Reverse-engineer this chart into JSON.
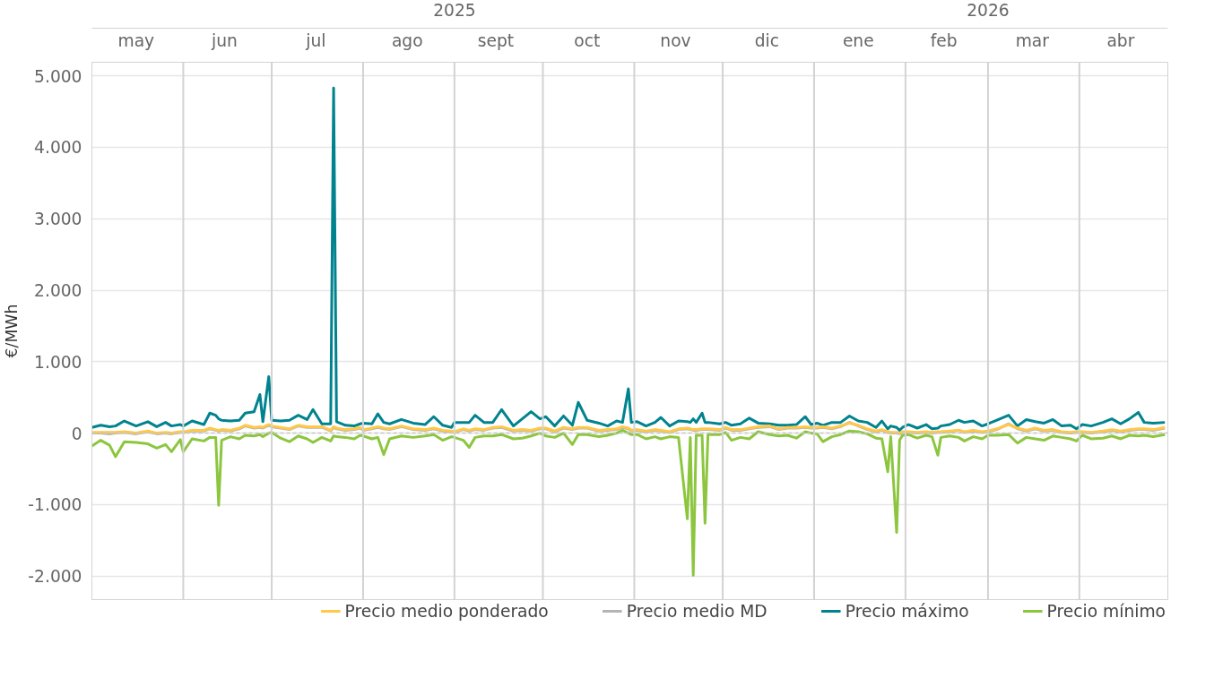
{
  "chart_data": {
    "type": "line",
    "ylabel": "€/MWh",
    "x": [
      "2025-05-01",
      "2025-05-04",
      "2025-05-07",
      "2025-05-09",
      "2025-05-12",
      "2025-05-16",
      "2025-05-20",
      "2025-05-23",
      "2025-05-26",
      "2025-05-28",
      "2025-05-31",
      "2025-06-01",
      "2025-06-04",
      "2025-06-08",
      "2025-06-10",
      "2025-06-12",
      "2025-06-13",
      "2025-06-14",
      "2025-06-17",
      "2025-06-20",
      "2025-06-22",
      "2025-06-25",
      "2025-06-27",
      "2025-06-28",
      "2025-06-30",
      "2025-07-01",
      "2025-07-04",
      "2025-07-07",
      "2025-07-10",
      "2025-07-13",
      "2025-07-15",
      "2025-07-18",
      "2025-07-21",
      "2025-07-22",
      "2025-07-23",
      "2025-07-26",
      "2025-07-29",
      "2025-07-31",
      "2025-08-01",
      "2025-08-04",
      "2025-08-06",
      "2025-08-08",
      "2025-08-10",
      "2025-08-14",
      "2025-08-18",
      "2025-08-22",
      "2025-08-25",
      "2025-08-28",
      "2025-08-31",
      "2025-09-01",
      "2025-09-04",
      "2025-09-06",
      "2025-09-08",
      "2025-09-11",
      "2025-09-14",
      "2025-09-17",
      "2025-09-21",
      "2025-09-24",
      "2025-09-27",
      "2025-09-30",
      "2025-10-02",
      "2025-10-05",
      "2025-10-08",
      "2025-10-11",
      "2025-10-13",
      "2025-10-16",
      "2025-10-20",
      "2025-10-23",
      "2025-10-26",
      "2025-10-28",
      "2025-10-30",
      "2025-10-31",
      "2025-11-02",
      "2025-11-05",
      "2025-11-08",
      "2025-11-10",
      "2025-11-13",
      "2025-11-16",
      "2025-11-19",
      "2025-11-20",
      "2025-11-21",
      "2025-11-22",
      "2025-11-24",
      "2025-11-25",
      "2025-11-26",
      "2025-11-30",
      "2025-12-02",
      "2025-12-04",
      "2025-12-07",
      "2025-12-10",
      "2025-12-13",
      "2025-12-17",
      "2025-12-20",
      "2025-12-23",
      "2025-12-26",
      "2025-12-29",
      "2025-12-31",
      "2026-01-02",
      "2026-01-04",
      "2026-01-07",
      "2026-01-10",
      "2026-01-13",
      "2026-01-16",
      "2026-01-19",
      "2026-01-22",
      "2026-01-24",
      "2026-01-26",
      "2026-01-27",
      "2026-01-29",
      "2026-01-30",
      "2026-01-31",
      "2026-02-02",
      "2026-02-05",
      "2026-02-08",
      "2026-02-10",
      "2026-02-12",
      "2026-02-13",
      "2026-02-16",
      "2026-02-19",
      "2026-02-21",
      "2026-02-24",
      "2026-02-27",
      "2026-03-01",
      "2026-03-04",
      "2026-03-08",
      "2026-03-11",
      "2026-03-14",
      "2026-03-17",
      "2026-03-20",
      "2026-03-23",
      "2026-03-26",
      "2026-03-29",
      "2026-03-31",
      "2026-04-02",
      "2026-04-05",
      "2026-04-09",
      "2026-04-12",
      "2026-04-15",
      "2026-04-18",
      "2026-04-21",
      "2026-04-23",
      "2026-04-26",
      "2026-04-30"
    ],
    "series": [
      {
        "name": "Precio medio ponderado",
        "color": "#ffc846",
        "values": [
          10,
          10,
          10,
          10,
          20,
          0,
          30,
          0,
          10,
          0,
          20,
          20,
          40,
          40,
          70,
          50,
          40,
          50,
          40,
          70,
          110,
          80,
          90,
          80,
          120,
          100,
          80,
          60,
          110,
          90,
          90,
          90,
          40,
          90,
          70,
          50,
          60,
          80,
          50,
          70,
          90,
          70,
          60,
          100,
          60,
          50,
          70,
          40,
          30,
          20,
          60,
          40,
          60,
          50,
          80,
          90,
          40,
          50,
          40,
          70,
          70,
          30,
          80,
          60,
          80,
          80,
          40,
          50,
          60,
          90,
          70,
          40,
          50,
          30,
          50,
          40,
          20,
          60,
          70,
          60,
          50,
          50,
          60,
          60,
          60,
          50,
          80,
          50,
          50,
          70,
          90,
          100,
          60,
          80,
          80,
          90,
          80,
          80,
          90,
          70,
          100,
          140,
          110,
          60,
          30,
          50,
          20,
          10,
          10,
          0,
          20,
          20,
          10,
          20,
          10,
          20,
          20,
          30,
          40,
          20,
          40,
          20,
          30,
          60,
          120,
          70,
          40,
          70,
          40,
          50,
          20,
          10,
          20,
          20,
          10,
          30,
          50,
          30,
          50,
          60,
          60,
          50,
          80
        ]
      },
      {
        "name": "Precio medio MD",
        "color": "#b4b4b4",
        "values": [
          0,
          0,
          -10,
          0,
          10,
          -10,
          20,
          -10,
          0,
          -10,
          10,
          10,
          30,
          30,
          60,
          40,
          30,
          40,
          30,
          60,
          100,
          70,
          80,
          70,
          110,
          90,
          70,
          50,
          100,
          80,
          80,
          80,
          30,
          80,
          60,
          40,
          50,
          70,
          40,
          60,
          80,
          60,
          50,
          90,
          50,
          40,
          60,
          30,
          20,
          10,
          50,
          30,
          50,
          40,
          70,
          80,
          30,
          40,
          30,
          60,
          60,
          20,
          70,
          50,
          70,
          70,
          30,
          40,
          50,
          80,
          60,
          30,
          40,
          20,
          40,
          30,
          10,
          50,
          60,
          50,
          40,
          40,
          50,
          50,
          50,
          40,
          70,
          40,
          40,
          60,
          80,
          90,
          50,
          70,
          70,
          80,
          70,
          70,
          80,
          60,
          90,
          150,
          100,
          50,
          20,
          40,
          10,
          0,
          0,
          -10,
          10,
          10,
          0,
          10,
          0,
          10,
          10,
          20,
          40,
          10,
          30,
          10,
          20,
          50,
          130,
          60,
          30,
          60,
          30,
          40,
          10,
          0,
          10,
          10,
          0,
          20,
          40,
          20,
          40,
          50,
          50,
          40,
          70
        ]
      },
      {
        "name": "Precio máximo",
        "color": "#00838f",
        "values": [
          80,
          110,
          90,
          100,
          170,
          100,
          160,
          90,
          150,
          100,
          120,
          100,
          170,
          120,
          280,
          250,
          200,
          180,
          170,
          180,
          280,
          300,
          540,
          160,
          790,
          180,
          170,
          180,
          250,
          190,
          330,
          130,
          130,
          4830,
          160,
          110,
          100,
          130,
          140,
          130,
          270,
          150,
          130,
          190,
          140,
          120,
          230,
          110,
          80,
          150,
          150,
          150,
          250,
          150,
          150,
          330,
          100,
          200,
          300,
          200,
          230,
          100,
          240,
          110,
          430,
          180,
          140,
          100,
          170,
          150,
          620,
          150,
          160,
          100,
          150,
          220,
          100,
          170,
          160,
          150,
          200,
          150,
          280,
          150,
          150,
          130,
          150,
          110,
          130,
          210,
          140,
          130,
          110,
          110,
          120,
          230,
          120,
          140,
          110,
          150,
          150,
          240,
          170,
          150,
          80,
          170,
          60,
          100,
          80,
          40,
          80,
          120,
          70,
          120,
          60,
          70,
          100,
          120,
          180,
          150,
          170,
          100,
          130,
          180,
          250,
          100,
          190,
          160,
          140,
          190,
          100,
          110,
          60,
          120,
          100,
          150,
          200,
          130,
          200,
          290,
          150,
          140,
          150
        ]
      },
      {
        "name": "Precio mínimo",
        "color": "#8cc63f",
        "values": [
          -180,
          -100,
          -170,
          -330,
          -120,
          -130,
          -150,
          -210,
          -160,
          -260,
          -90,
          -260,
          -80,
          -110,
          -60,
          -60,
          -1010,
          -100,
          -50,
          -80,
          -30,
          -40,
          -20,
          -50,
          0,
          10,
          -70,
          -120,
          -40,
          -80,
          -130,
          -60,
          -110,
          -40,
          -50,
          -60,
          -80,
          -30,
          -40,
          -80,
          -60,
          -300,
          -80,
          -40,
          -60,
          -40,
          -20,
          -100,
          -50,
          -60,
          -100,
          -200,
          -60,
          -40,
          -40,
          -20,
          -80,
          -70,
          -40,
          0,
          -40,
          -60,
          0,
          -160,
          -20,
          -20,
          -50,
          -30,
          0,
          40,
          0,
          -20,
          -20,
          -80,
          -50,
          -80,
          -50,
          -60,
          -1200,
          -60,
          -1990,
          -30,
          -30,
          -1260,
          -20,
          -20,
          10,
          -100,
          -60,
          -80,
          20,
          -20,
          -40,
          -30,
          -70,
          20,
          0,
          -10,
          -120,
          -50,
          -20,
          30,
          20,
          -10,
          -70,
          -80,
          -540,
          -50,
          -1390,
          -100,
          -30,
          -20,
          -70,
          -30,
          -50,
          -310,
          -60,
          -40,
          -60,
          -110,
          -50,
          -80,
          -30,
          -30,
          -20,
          -140,
          -60,
          -80,
          -100,
          -40,
          -60,
          -80,
          -110,
          -30,
          -80,
          -70,
          -40,
          -80,
          -30,
          -40,
          -30,
          -50,
          -20
        ]
      }
    ],
    "xlim": [
      "2025-05-01",
      "2026-05-01"
    ],
    "xticks": [
      {
        "value": "2025-05-16",
        "label": "may"
      },
      {
        "value": "2025-06-15",
        "label": "jun"
      },
      {
        "value": "2025-07-16",
        "label": "jul"
      },
      {
        "value": "2025-08-16",
        "label": "ago"
      },
      {
        "value": "2025-09-15",
        "label": "sept"
      },
      {
        "value": "2025-10-16",
        "label": "oct"
      },
      {
        "value": "2025-11-15",
        "label": "nov"
      },
      {
        "value": "2025-12-16",
        "label": "dic"
      },
      {
        "value": "2026-01-16",
        "label": "ene"
      },
      {
        "value": "2026-02-14",
        "label": "feb"
      },
      {
        "value": "2026-03-16",
        "label": "mar"
      },
      {
        "value": "2026-04-15",
        "label": "abr"
      }
    ],
    "x2lim": [
      "2025-05-01",
      "2026-05-01"
    ],
    "x2ticks": [
      {
        "value": "2025-09-01",
        "label": "2025"
      },
      {
        "value": "2026-03-01",
        "label": "2026"
      }
    ],
    "ylim": [
      -2330,
      5190
    ],
    "yticks": [
      {
        "value": -2000,
        "label": "-2.000"
      },
      {
        "value": -1000,
        "label": "-1.000"
      },
      0,
      {
        "value": 1000,
        "label": "1.000"
      },
      {
        "value": 2000,
        "label": "2.000"
      },
      {
        "value": 3000,
        "label": "3.000"
      },
      {
        "value": 4000,
        "label": "4.000"
      },
      {
        "value": 5000,
        "label": "5.000"
      }
    ],
    "ref_lines": [
      {
        "axis": "y",
        "value": 0,
        "color": "#c8c8c8",
        "line_style": "dashed"
      },
      {
        "axis": "x",
        "value": "2025-06-01",
        "color": "#d3d3d3"
      },
      {
        "axis": "x",
        "value": "2025-07-01",
        "color": "#d3d3d3"
      },
      {
        "axis": "x",
        "value": "2025-08-01",
        "color": "#d3d3d3"
      },
      {
        "axis": "x",
        "value": "2025-09-01",
        "color": "#d3d3d3"
      },
      {
        "axis": "x",
        "value": "2025-10-01",
        "color": "#d3d3d3"
      },
      {
        "axis": "x",
        "value": "2025-11-01",
        "color": "#d3d3d3"
      },
      {
        "axis": "x",
        "value": "2025-12-01",
        "color": "#d3d3d3"
      },
      {
        "axis": "x",
        "value": "2026-01-01",
        "color": "#d3d3d3"
      },
      {
        "axis": "x",
        "value": "2026-02-01",
        "color": "#d3d3d3"
      },
      {
        "axis": "x",
        "value": "2026-03-01",
        "color": "#d3d3d3"
      },
      {
        "axis": "x",
        "value": "2026-04-01",
        "color": "#d3d3d3"
      }
    ],
    "grid": "y",
    "legend": "bottom",
    "line_style": "solid",
    "marker": "none"
  }
}
